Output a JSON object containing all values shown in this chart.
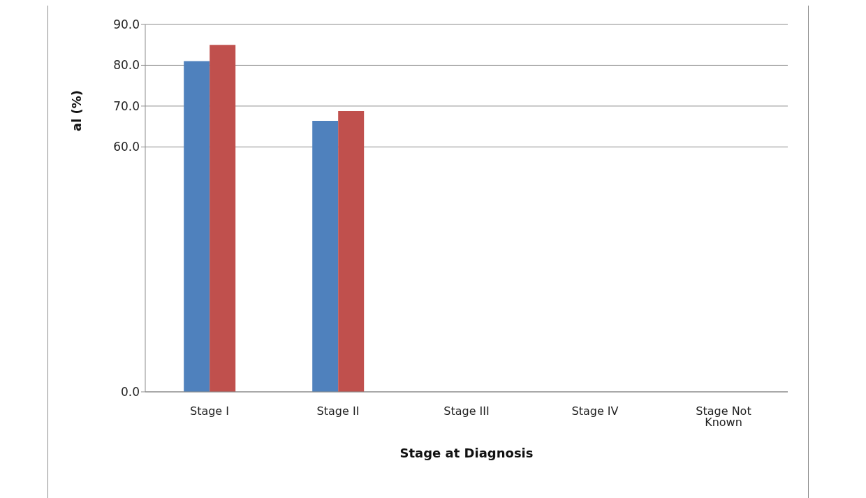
{
  "chart_data": {
    "type": "bar",
    "xlabel": "Stage at Diagnosis",
    "ylabel": "al (%)",
    "categories": [
      "Stage I",
      "Stage II",
      "Stage III",
      "Stage IV",
      "Stage Not Known"
    ],
    "series": [
      {
        "color": "#4f81bd",
        "values": [
          81.0,
          66.4,
          null,
          null,
          null
        ]
      },
      {
        "color": "#c0504d",
        "values": [
          85.0,
          68.8,
          null,
          null,
          null
        ]
      }
    ],
    "ylim": [
      0,
      90
    ],
    "yticks": [
      {
        "value": 0,
        "label": "0.0"
      },
      {
        "value": 60,
        "label": "60.0"
      },
      {
        "value": 70,
        "label": "70.0"
      },
      {
        "value": 80,
        "label": "80.0"
      },
      {
        "value": 90,
        "label": "90.0"
      }
    ],
    "grid": "y",
    "legend": false
  }
}
